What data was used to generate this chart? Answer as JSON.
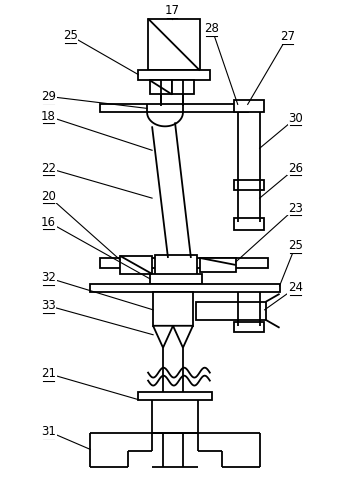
{
  "bg_color": "#ffffff",
  "line_color": "#000000",
  "lw": 1.3,
  "fig_width": 3.42,
  "fig_height": 4.87
}
